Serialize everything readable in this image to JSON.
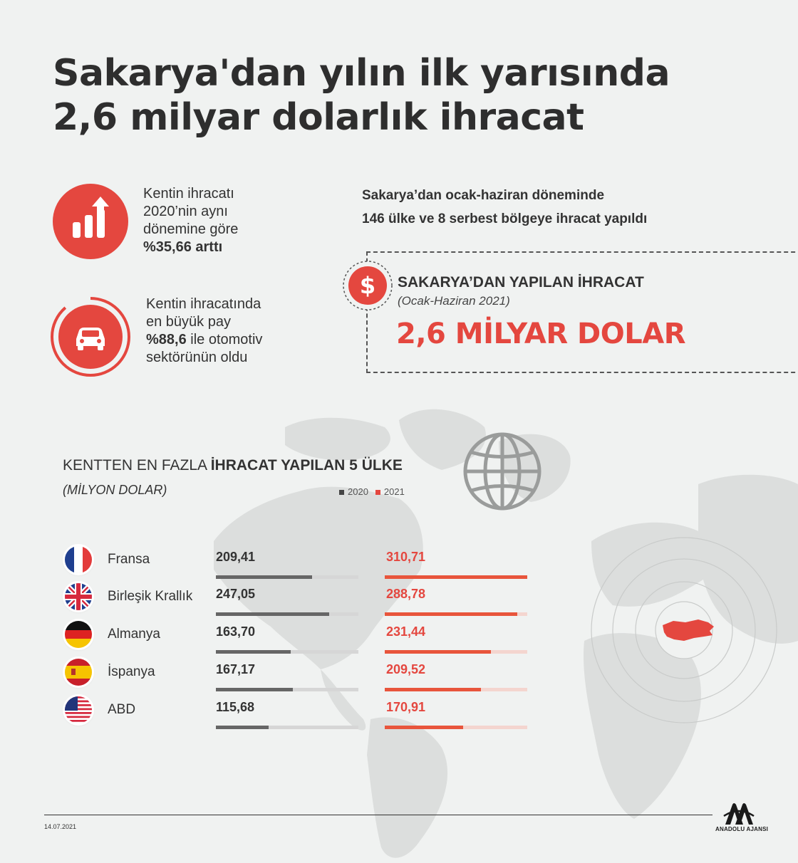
{
  "title": {
    "line1": "Sakarya'dan yılın ilk yarısında",
    "line2": "2,6 milyar dolarlık ihracat"
  },
  "stats": {
    "growth": {
      "line1": "Kentin ihracatı",
      "line2": "2020’nin aynı",
      "line3": "dönemine göre",
      "highlight": "%35,66 arttı",
      "icon": "rising-bar-chart-icon"
    },
    "automotive": {
      "line1": "Kentin ihracatında",
      "line2": "en büyük pay",
      "highlight": "%88,6",
      "line3_rest": " ile otomotiv",
      "line4": "sektörünün oldu",
      "icon": "car-icon",
      "share": 0.886
    }
  },
  "intro": {
    "line1": "Sakarya’dan ocak-haziran döneminde",
    "line2": "146 ülke ve 8 serbest bölgeye ihracat yapıldı"
  },
  "export_box": {
    "title": "SAKARYA’DAN YAPILAN İHRACAT",
    "subtitle": "(Ocak-Haziran 2021)",
    "value": "2,6 MİLYAR DOLAR",
    "icon": "dollar-icon"
  },
  "colors": {
    "accent": "#e4473f",
    "dark": "#2e2e2e",
    "bar_2020": "#666666",
    "bar_2021": "#e8553c",
    "track_2020": "#d6d6d6",
    "track_2021": "#f4d5cf",
    "background": "#f0f2f1"
  },
  "chart_data": {
    "type": "bar",
    "title_plain": "KENTTEN EN FAZLA ",
    "title_bold": "İHRACAT YAPILAN 5 ÜLKE",
    "unit": "(MİLYON DOLAR)",
    "categories": [
      "Fransa",
      "Birleşik Krallık",
      "Almanya",
      "İspanya",
      "ABD"
    ],
    "flags": [
      "france-flag-icon",
      "uk-flag-icon",
      "germany-flag-icon",
      "spain-flag-icon",
      "usa-flag-icon"
    ],
    "series": [
      {
        "name": "2020",
        "values": [
          209.41,
          247.05,
          163.7,
          167.17,
          115.68
        ],
        "labels": [
          "209,41",
          "247,05",
          "163,70",
          "167,17",
          "115,68"
        ]
      },
      {
        "name": "2021",
        "values": [
          310.71,
          288.78,
          231.44,
          209.52,
          170.91
        ],
        "labels": [
          "310,71",
          "288,78",
          "231,44",
          "209,52",
          "170,91"
        ]
      }
    ],
    "max": 310.71
  },
  "footer": {
    "date": "14.07.2021",
    "logo_text": "ANADOLU AJANSI",
    "logo_icon": "anadolu-ajansi-logo-icon"
  },
  "map": {
    "globe_icon": "globe-icon",
    "turkey_icon": "turkey-map-icon"
  }
}
